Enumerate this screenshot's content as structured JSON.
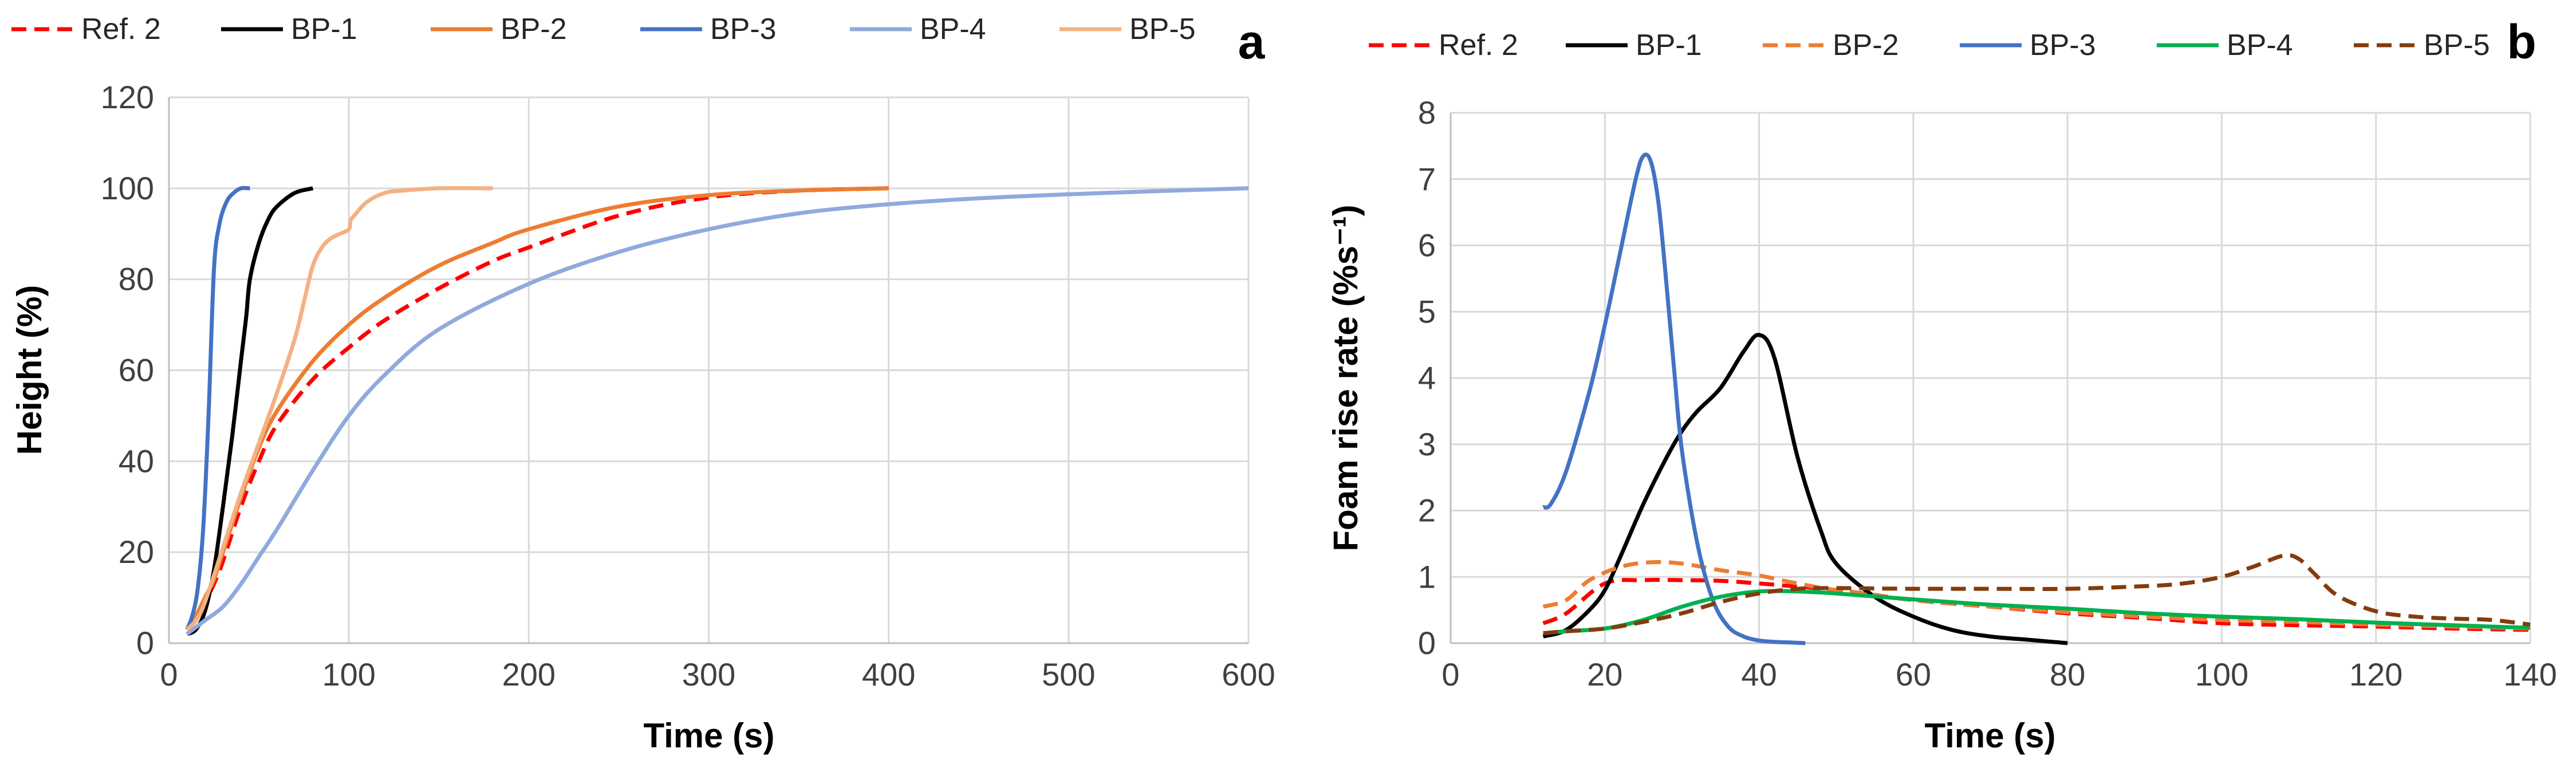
{
  "colors": {
    "ref2": "#ff0000",
    "bp1": "#000000",
    "bp2": "#ed7d31",
    "bp3": "#4472c4",
    "bp4a": "#8faadc",
    "bp4b": "#00b050",
    "bp5a": "#f4b183",
    "bp5b": "#843c0c"
  },
  "chart_data": [
    {
      "panel": "a",
      "type": "line",
      "title": "",
      "xlabel": "Time (s)",
      "ylabel": "Height (%)",
      "xlim": [
        0,
        600
      ],
      "ylim": [
        0,
        120
      ],
      "xticks": [
        0,
        100,
        200,
        300,
        400,
        500,
        600
      ],
      "yticks": [
        0,
        20,
        40,
        60,
        80,
        100,
        120
      ],
      "grid": true,
      "legend_position": "top",
      "series": [
        {
          "name": "Ref. 2",
          "color": "#ff0000",
          "dash": true,
          "x": [
            10,
            15,
            20,
            25,
            30,
            40,
            50,
            60,
            80,
            100,
            120,
            150,
            180,
            200,
            250,
            300,
            350,
            400
          ],
          "y": [
            3,
            5,
            9,
            13,
            18,
            30,
            40,
            48,
            58,
            65,
            71,
            78,
            84,
            87,
            94,
            98,
            99.5,
            100
          ]
        },
        {
          "name": "BP-1",
          "color": "#000000",
          "dash": false,
          "x": [
            10,
            15,
            20,
            25,
            30,
            35,
            40,
            43,
            45,
            50,
            55,
            60,
            70,
            80
          ],
          "y": [
            2,
            3,
            7,
            16,
            30,
            45,
            62,
            72,
            80,
            88,
            93,
            96,
            99,
            100
          ]
        },
        {
          "name": "BP-2",
          "color": "#ed7d31",
          "dash": false,
          "x": [
            10,
            15,
            20,
            25,
            30,
            40,
            50,
            60,
            80,
            100,
            120,
            150,
            180,
            200,
            250,
            300,
            350,
            400
          ],
          "y": [
            3,
            6,
            10,
            14,
            20,
            32,
            43,
            51,
            62,
            70,
            76,
            83,
            88,
            91,
            96,
            98.5,
            99.5,
            100
          ]
        },
        {
          "name": "BP-3",
          "color": "#4472c4",
          "dash": false,
          "x": [
            10,
            13,
            16,
            19,
            22,
            25,
            28,
            32,
            36,
            40,
            45
          ],
          "y": [
            3,
            6,
            12,
            25,
            50,
            82,
            92,
            97,
            99,
            100,
            100
          ]
        },
        {
          "name": "BP-4",
          "color": "#8faadc",
          "dash": false,
          "x": [
            10,
            20,
            30,
            40,
            50,
            60,
            80,
            100,
            120,
            150,
            200,
            250,
            300,
            350,
            400,
            450,
            500,
            550,
            600
          ],
          "y": [
            2,
            5,
            8,
            13,
            19,
            25,
            38,
            50,
            59,
            69,
            79,
            86,
            91,
            94.5,
            96.5,
            97.8,
            98.7,
            99.4,
            100
          ]
        },
        {
          "name": "BP-5",
          "color": "#f4b183",
          "dash": false,
          "x": [
            10,
            15,
            20,
            30,
            40,
            50,
            60,
            70,
            75,
            80,
            85,
            90,
            95,
            100,
            101,
            103,
            110,
            120,
            130,
            150,
            180
          ],
          "y": [
            3,
            5,
            9,
            21,
            33,
            44,
            55,
            67,
            75,
            83,
            87,
            89,
            90,
            91,
            93,
            94,
            97,
            99,
            99.5,
            100,
            100
          ]
        }
      ]
    },
    {
      "panel": "b",
      "type": "line",
      "title": "",
      "xlabel": "Time (s)",
      "ylabel": "Foam rise rate (%s⁻¹)",
      "xlim": [
        0,
        140
      ],
      "ylim": [
        0,
        8
      ],
      "xticks": [
        0,
        20,
        40,
        60,
        80,
        100,
        120,
        140
      ],
      "yticks": [
        0,
        1,
        2,
        3,
        4,
        5,
        6,
        7,
        8
      ],
      "grid": true,
      "legend_position": "top",
      "series": [
        {
          "name": "Ref. 2",
          "color": "#ff0000",
          "dash": true,
          "x": [
            12,
            15,
            20,
            25,
            30,
            35,
            40,
            50,
            60,
            70,
            80,
            90,
            100,
            110,
            120,
            130,
            140
          ],
          "y": [
            0.3,
            0.45,
            0.9,
            0.95,
            0.95,
            0.94,
            0.9,
            0.8,
            0.65,
            0.55,
            0.45,
            0.38,
            0.3,
            0.27,
            0.25,
            0.22,
            0.2
          ]
        },
        {
          "name": "BP-1",
          "color": "#000000",
          "dash": false,
          "x": [
            12,
            15,
            18,
            20,
            22,
            25,
            28,
            30,
            32,
            35,
            38,
            40,
            42,
            45,
            48,
            50,
            55,
            60,
            65,
            70,
            75,
            80
          ],
          "y": [
            0.1,
            0.2,
            0.5,
            0.8,
            1.3,
            2.1,
            2.8,
            3.2,
            3.5,
            3.85,
            4.4,
            4.65,
            4.3,
            2.8,
            1.7,
            1.2,
            0.7,
            0.4,
            0.2,
            0.1,
            0.05,
            0
          ]
        },
        {
          "name": "BP-2",
          "color": "#ed7d31",
          "dash": true,
          "x": [
            12,
            15,
            18,
            22,
            26,
            30,
            35,
            40,
            45,
            50,
            60,
            70,
            80,
            90,
            100,
            110,
            120,
            130,
            140
          ],
          "y": [
            0.55,
            0.65,
            0.95,
            1.15,
            1.22,
            1.2,
            1.1,
            1.02,
            0.9,
            0.8,
            0.65,
            0.55,
            0.47,
            0.4,
            0.35,
            0.32,
            0.28,
            0.25,
            0.22
          ]
        },
        {
          "name": "BP-3",
          "color": "#4472c4",
          "dash": false,
          "x": [
            12,
            13,
            15,
            18,
            20,
            22,
            24,
            25,
            26,
            27,
            28,
            29,
            30,
            32,
            34,
            36,
            38,
            40,
            42,
            44,
            46
          ],
          "y": [
            2.05,
            2.1,
            2.6,
            3.8,
            4.8,
            5.9,
            7.0,
            7.35,
            7.25,
            6.6,
            5.4,
            4.1,
            2.9,
            1.5,
            0.65,
            0.25,
            0.1,
            0.04,
            0.02,
            0.01,
            0
          ]
        },
        {
          "name": "BP-4",
          "color": "#00b050",
          "dash": false,
          "x": [
            12,
            15,
            20,
            25,
            30,
            35,
            40,
            45,
            50,
            60,
            70,
            80,
            90,
            100,
            110,
            120,
            130,
            140
          ],
          "y": [
            0.15,
            0.18,
            0.22,
            0.35,
            0.55,
            0.7,
            0.78,
            0.78,
            0.75,
            0.66,
            0.58,
            0.52,
            0.45,
            0.4,
            0.36,
            0.31,
            0.27,
            0.23
          ]
        },
        {
          "name": "BP-5",
          "color": "#843c0c",
          "dash": true,
          "x": [
            12,
            15,
            20,
            25,
            30,
            35,
            40,
            45,
            50,
            60,
            70,
            80,
            90,
            95,
            100,
            104,
            108,
            110,
            112,
            115,
            120,
            125,
            130,
            135,
            140
          ],
          "y": [
            0.15,
            0.18,
            0.22,
            0.32,
            0.45,
            0.62,
            0.75,
            0.82,
            0.83,
            0.82,
            0.82,
            0.82,
            0.86,
            0.9,
            1.0,
            1.15,
            1.32,
            1.27,
            1.05,
            0.72,
            0.48,
            0.4,
            0.37,
            0.35,
            0.28
          ]
        }
      ]
    }
  ]
}
